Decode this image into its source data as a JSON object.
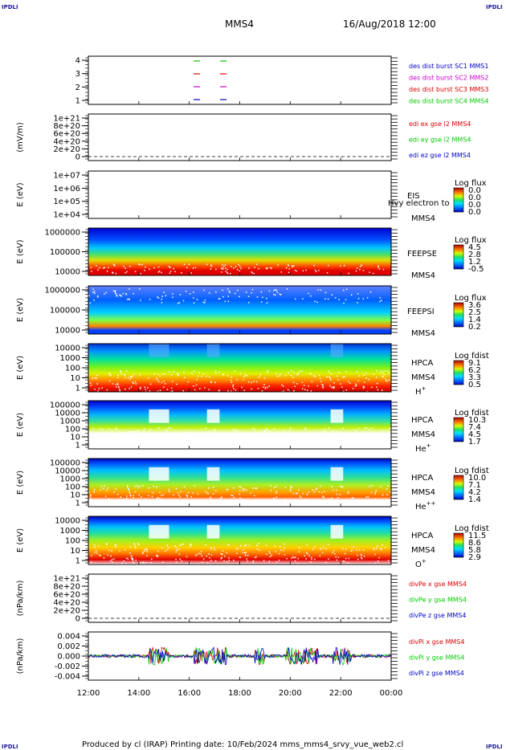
{
  "corners": {
    "tl": "IPDLI",
    "tr": "IPDLI",
    "bl": "IPDLI",
    "br": "IPDLI"
  },
  "header": {
    "spacecraft": "MMS4",
    "datetime": "16/Aug/2018 12:00"
  },
  "footer": "Produced by cl (IRAP)    Printing date: 10/Feb/2024   mms_mms4_srvy_vue_web2.cl",
  "time_axis": {
    "labels": [
      "12:00",
      "14:00",
      "16:00",
      "18:00",
      "20:00",
      "22:00",
      "00:00"
    ]
  },
  "colors": {
    "blue": "#0000cc",
    "magenta": "#cc00cc",
    "red": "#dd0000",
    "green": "#00cc00"
  },
  "chart_data": [
    {
      "type": "scatter",
      "ylabel": "",
      "yticks": [
        "4",
        "3",
        "2",
        "1"
      ],
      "ylim": [
        0.5,
        4.5
      ],
      "legend": [
        {
          "text": "des dist burst SC1 MMS1",
          "color": "#0000cc"
        },
        {
          "text": "des dist burst SC2 MMS2",
          "color": "#cc00cc"
        },
        {
          "text": "des dist burst SC3 MMS3",
          "color": "#dd0000"
        },
        {
          "text": "des dist burst SC4 MMS4",
          "color": "#00cc00"
        }
      ],
      "series": [
        {
          "name": "des dist burst SC4 MMS4",
          "color": "#00cc00",
          "y": 4,
          "x_hours": [
            16.3,
            17.35
          ]
        },
        {
          "name": "des dist burst SC3 MMS3",
          "color": "#dd0000",
          "y": 3,
          "x_hours": [
            16.3,
            17.35
          ]
        },
        {
          "name": "des dist burst SC2 MMS2",
          "color": "#cc00cc",
          "y": 2,
          "x_hours": [
            16.3,
            17.35
          ]
        },
        {
          "name": "des dist burst SC1 MMS1",
          "color": "#0000cc",
          "y": 1,
          "x_hours": [
            16.3,
            17.35
          ]
        }
      ]
    },
    {
      "type": "line",
      "ylabel": "(mV/m)",
      "yticks": [
        "1e+21",
        "8e+20",
        "6e+20",
        "4e+20",
        "2e+20",
        "0"
      ],
      "legend": [
        {
          "text": "edi ex gse l2 MMS4",
          "color": "#dd0000"
        },
        {
          "text": "edi ey gse l2 MMS4",
          "color": "#00cc00"
        },
        {
          "text": "edi ez gse l2 MMS4",
          "color": "#0000cc"
        }
      ],
      "series": []
    },
    {
      "type": "heatmap",
      "ylabel": "E (eV)",
      "yticks": [
        "1e+07",
        "1e+06",
        "1e+05",
        "1e+04"
      ],
      "side_labels": [
        "EIS",
        "MMS4"
      ],
      "overlay_text": "Hvy electron to",
      "colorbar": {
        "title": "Log flux",
        "values": [
          "0.0",
          "0.0",
          "0.0",
          "0.0"
        ]
      },
      "empty": true
    },
    {
      "type": "heatmap",
      "ylabel": "E (eV)",
      "yticks": [
        "1000000",
        "100000",
        "10000"
      ],
      "side_labels": [
        "FEEPSE",
        "MMS4"
      ],
      "colorbar": {
        "title": "Log flux",
        "values": [
          "4.5",
          "2.8",
          "1.2",
          "-0.5"
        ]
      }
    },
    {
      "type": "heatmap",
      "ylabel": "E (eV)",
      "yticks": [
        "1000000",
        "100000",
        "10000"
      ],
      "side_labels": [
        "FEEPSI",
        "MMS4"
      ],
      "colorbar": {
        "title": "Log flux",
        "values": [
          "3.6",
          "2.5",
          "1.4",
          "0.2"
        ]
      }
    },
    {
      "type": "heatmap",
      "ylabel": "E (eV)",
      "yticks": [
        "10000",
        "1000",
        "100",
        "10",
        "1"
      ],
      "side_labels": [
        "HPCA",
        "MMS4"
      ],
      "species": "H",
      "species_sup": "+",
      "colorbar": {
        "title": "Log fdist",
        "values": [
          "9.1",
          "6.2",
          "3.3",
          "0.5"
        ]
      }
    },
    {
      "type": "heatmap",
      "ylabel": "E (eV)",
      "yticks": [
        "100000",
        "10000",
        "1000",
        "100",
        "10",
        "1"
      ],
      "side_labels": [
        "HPCA",
        "MMS4"
      ],
      "species": "He",
      "species_sup": "+",
      "colorbar": {
        "title": "Log fdist",
        "values": [
          "10.3",
          "7.4",
          "4.5",
          "1.7"
        ]
      }
    },
    {
      "type": "heatmap",
      "ylabel": "E (eV)",
      "yticks": [
        "100000",
        "10000",
        "1000",
        "100",
        "10",
        "1"
      ],
      "side_labels": [
        "HPCA",
        "MMS4"
      ],
      "species": "He",
      "species_sup": "++",
      "colorbar": {
        "title": "Log fdist",
        "values": [
          "10.0",
          "7.1",
          "4.2",
          "1.4"
        ]
      }
    },
    {
      "type": "heatmap",
      "ylabel": "E (eV)",
      "yticks": [
        "10000",
        "1000",
        "100",
        "10",
        "1"
      ],
      "side_labels": [
        "HPCA",
        "MMS4"
      ],
      "species": "O",
      "species_sup": "+",
      "colorbar": {
        "title": "Log fdist",
        "values": [
          "11.5",
          "8.6",
          "5.8",
          "2.9"
        ]
      }
    },
    {
      "type": "line",
      "ylabel": "(nPa/km)",
      "yticks": [
        "1e+21",
        "8e+20",
        "6e+20",
        "4e+20",
        "2e+20",
        "0"
      ],
      "legend": [
        {
          "text": "divPe x gse MMS4",
          "color": "#dd0000"
        },
        {
          "text": "divPe y gse MMS4",
          "color": "#00cc00"
        },
        {
          "text": "divPe z gse MMS4",
          "color": "#0000cc"
        }
      ],
      "series": []
    },
    {
      "type": "line",
      "ylabel": "(nPa/km)",
      "yticks": [
        "0.004",
        "0.002",
        "0.000",
        "-0.002",
        "-0.004"
      ],
      "ylim": [
        -0.005,
        0.005
      ],
      "legend": [
        {
          "text": "divPi x gse MMS4",
          "color": "#dd0000"
        },
        {
          "text": "divPi y gse MMS4",
          "color": "#00cc00"
        },
        {
          "text": "divPi z gse MMS4",
          "color": "#0000cc"
        }
      ]
    }
  ]
}
